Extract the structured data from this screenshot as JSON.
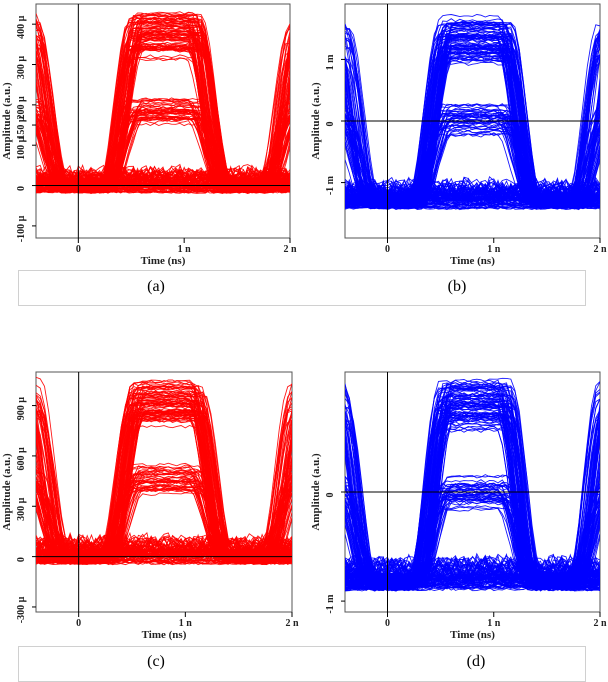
{
  "captions": [
    "(a)",
    "(b)",
    "(c)",
    "(d)"
  ],
  "chart_data": [
    {
      "type": "line",
      "subtype": "eye-diagram",
      "panel": "(a)",
      "color": "#ff0000",
      "xlabel": "Time (ns)",
      "ylabel": "Amplitude (a.u.)",
      "xlim": [
        -0.4,
        2.0
      ],
      "ylim": [
        -130,
        450
      ],
      "x_ticks": [
        {
          "v": 0,
          "label": "0"
        },
        {
          "v": 1,
          "label": "1 n"
        },
        {
          "v": 2,
          "label": "2 n"
        }
      ],
      "y_ticks": [
        {
          "v": -100,
          "label": "-100 µ"
        },
        {
          "v": 0,
          "label": "0"
        },
        {
          "v": 100,
          "label": "100 µ"
        },
        {
          "v": 150,
          "label": "150 µ"
        },
        {
          "v": 200,
          "label": "200 µ"
        },
        {
          "v": 300,
          "label": "300 µ"
        },
        {
          "v": 400,
          "label": "400 µ"
        }
      ],
      "eye_center": 0.82,
      "high_level": 370,
      "low_level": 0,
      "inner_top": 250,
      "inner_bottom": 80
    },
    {
      "type": "line",
      "subtype": "eye-diagram",
      "panel": "(b)",
      "color": "#0000ff",
      "xlabel": "Time (ns)",
      "ylabel": "Amplitude (a.u.)",
      "xlim": [
        -0.4,
        2.0
      ],
      "ylim": [
        -1.9,
        1.9
      ],
      "x_ticks": [
        {
          "v": 0,
          "label": "0"
        },
        {
          "v": 1,
          "label": "1 n"
        },
        {
          "v": 2,
          "label": "2 n"
        }
      ],
      "y_ticks": [
        {
          "v": -1,
          "label": "-1 m"
        },
        {
          "v": 0,
          "label": "0"
        },
        {
          "v": 1,
          "label": "1 m"
        }
      ],
      "eye_center": 0.82,
      "high_level": 1.3,
      "low_level": -1.3,
      "inner_top": 0.35,
      "inner_bottom": -0.35
    },
    {
      "type": "line",
      "subtype": "eye-diagram",
      "panel": "(c)",
      "color": "#ff0000",
      "xlabel": "Time (ns)",
      "ylabel": "Amplitude (a.u.)",
      "xlim": [
        -0.4,
        2.0
      ],
      "ylim": [
        -330,
        1100
      ],
      "x_ticks": [
        {
          "v": 0,
          "label": "0"
        },
        {
          "v": 1,
          "label": "1 n"
        },
        {
          "v": 2,
          "label": "2 n"
        }
      ],
      "y_ticks": [
        {
          "v": -300,
          "label": "-300 µ"
        },
        {
          "v": 0,
          "label": "0"
        },
        {
          "v": 300,
          "label": "300 µ"
        },
        {
          "v": 600,
          "label": "600 µ"
        },
        {
          "v": 900,
          "label": "900 µ"
        }
      ],
      "eye_center": 0.82,
      "high_level": 920,
      "low_level": 0,
      "inner_top": 620,
      "inner_bottom": 180
    },
    {
      "type": "line",
      "subtype": "eye-diagram",
      "panel": "(d)",
      "color": "#0000ff",
      "xlabel": "Time (ns)",
      "ylabel": "Amplitude (a.u.)",
      "xlim": [
        -0.4,
        2.0
      ],
      "ylim": [
        -1.1,
        1.1
      ],
      "x_ticks": [
        {
          "v": 0,
          "label": "0"
        },
        {
          "v": 1,
          "label": "1 n"
        },
        {
          "v": 2,
          "label": "2 n"
        }
      ],
      "y_ticks": [
        {
          "v": -1,
          "label": "-1 m"
        },
        {
          "v": 0,
          "label": "0"
        }
      ],
      "eye_center": 0.82,
      "high_level": 0.82,
      "low_level": -0.82,
      "inner_top": 0.22,
      "inner_bottom": -0.22
    }
  ]
}
